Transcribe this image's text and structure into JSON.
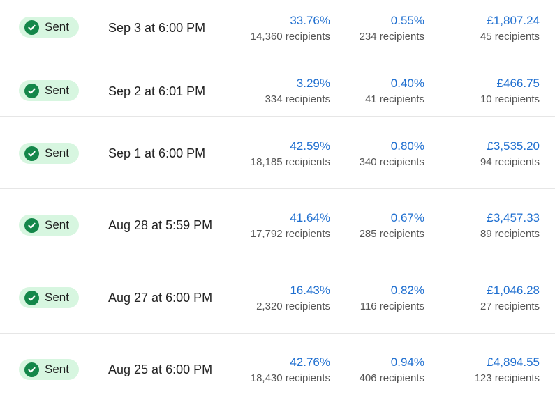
{
  "rows": [
    {
      "status": "Sent",
      "date": "Sep 3 at 6:00 PM",
      "open_rate": "33.76%",
      "open_count": "14,360 recipients",
      "click_rate": "0.55%",
      "click_count": "234 recipients",
      "revenue": "£1,807.24",
      "revenue_count": "45 recipients"
    },
    {
      "status": "Sent",
      "date": "Sep 2 at 6:01 PM",
      "open_rate": "3.29%",
      "open_count": "334 recipients",
      "click_rate": "0.40%",
      "click_count": "41 recipients",
      "revenue": "£466.75",
      "revenue_count": "10 recipients"
    },
    {
      "status": "Sent",
      "date": "Sep 1 at 6:00 PM",
      "open_rate": "42.59%",
      "open_count": "18,185 recipients",
      "click_rate": "0.80%",
      "click_count": "340 recipients",
      "revenue": "£3,535.20",
      "revenue_count": "94 recipients"
    },
    {
      "status": "Sent",
      "date": "Aug 28 at 5:59 PM",
      "open_rate": "41.64%",
      "open_count": "17,792 recipients",
      "click_rate": "0.67%",
      "click_count": "285 recipients",
      "revenue": "£3,457.33",
      "revenue_count": "89 recipients"
    },
    {
      "status": "Sent",
      "date": "Aug 27 at 6:00 PM",
      "open_rate": "16.43%",
      "open_count": "2,320 recipients",
      "click_rate": "0.82%",
      "click_count": "116 recipients",
      "revenue": "£1,046.28",
      "revenue_count": "27 recipients"
    },
    {
      "status": "Sent",
      "date": "Aug 25 at 6:00 PM",
      "open_rate": "42.76%",
      "open_count": "18,430 recipients",
      "click_rate": "0.94%",
      "click_count": "406 recipients",
      "revenue": "£4,894.55",
      "revenue_count": "123 recipients"
    }
  ],
  "colors": {
    "badge_bg": "#d7f6e0",
    "check_bg": "#14874a",
    "metric_value": "#1f6fd0"
  },
  "icons": {
    "status": "check-circle-icon"
  }
}
